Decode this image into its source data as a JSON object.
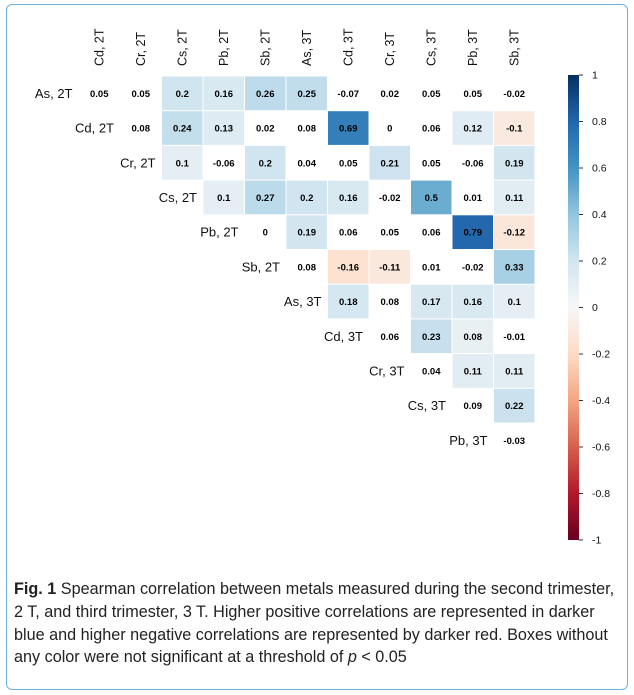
{
  "chart_data": {
    "type": "heatmap",
    "title": "",
    "column_labels": [
      "Cd, 2T",
      "Cr, 2T",
      "Cs, 2T",
      "Pb, 2T",
      "Sb, 2T",
      "As, 3T",
      "Cd, 3T",
      "Cr, 3T",
      "Cs, 3T",
      "Pb, 3T",
      "Sb, 3T"
    ],
    "row_labels": [
      "As, 2T",
      "Cd, 2T",
      "Cr, 2T",
      "Cs, 2T",
      "Pb, 2T",
      "Sb, 2T",
      "As, 3T",
      "Cd, 3T",
      "Cr, 3T",
      "Cs, 3T",
      "Pb, 3T"
    ],
    "values": [
      [
        0.05,
        0.05,
        0.2,
        0.16,
        0.26,
        0.25,
        -0.07,
        0.02,
        0.05,
        0.05,
        -0.02
      ],
      [
        null,
        0.08,
        0.24,
        0.13,
        0.02,
        0.08,
        0.69,
        0,
        0.06,
        0.12,
        -0.1
      ],
      [
        null,
        null,
        0.1,
        -0.06,
        0.2,
        0.04,
        0.05,
        0.21,
        0.05,
        -0.06,
        0.19
      ],
      [
        null,
        null,
        null,
        0.1,
        0.27,
        0.2,
        0.16,
        -0.02,
        0.5,
        0.01,
        0.11
      ],
      [
        null,
        null,
        null,
        null,
        0,
        0.19,
        0.06,
        0.05,
        0.06,
        0.79,
        -0.12
      ],
      [
        null,
        null,
        null,
        null,
        null,
        0.08,
        -0.16,
        -0.11,
        0.01,
        -0.02,
        0.33
      ],
      [
        null,
        null,
        null,
        null,
        null,
        null,
        0.18,
        0.08,
        0.17,
        0.16,
        0.1
      ],
      [
        null,
        null,
        null,
        null,
        null,
        null,
        null,
        0.06,
        0.23,
        0.08,
        -0.01
      ],
      [
        null,
        null,
        null,
        null,
        null,
        null,
        null,
        null,
        0.04,
        0.11,
        0.11
      ],
      [
        null,
        null,
        null,
        null,
        null,
        null,
        null,
        null,
        null,
        0.09,
        0.22
      ],
      [
        null,
        null,
        null,
        null,
        null,
        null,
        null,
        null,
        null,
        null,
        -0.03
      ]
    ],
    "colored": [
      [
        false,
        false,
        true,
        true,
        true,
        true,
        false,
        false,
        false,
        false,
        false
      ],
      [
        null,
        false,
        true,
        true,
        false,
        false,
        true,
        false,
        false,
        true,
        true
      ],
      [
        null,
        null,
        true,
        false,
        true,
        false,
        false,
        true,
        false,
        false,
        true
      ],
      [
        null,
        null,
        null,
        true,
        true,
        true,
        true,
        false,
        true,
        false,
        true
      ],
      [
        null,
        null,
        null,
        null,
        false,
        true,
        false,
        false,
        false,
        true,
        true
      ],
      [
        null,
        null,
        null,
        null,
        null,
        false,
        true,
        true,
        false,
        false,
        true
      ],
      [
        null,
        null,
        null,
        null,
        null,
        null,
        true,
        false,
        true,
        true,
        true
      ],
      [
        null,
        null,
        null,
        null,
        null,
        null,
        null,
        false,
        true,
        true,
        false
      ],
      [
        null,
        null,
        null,
        null,
        null,
        null,
        null,
        null,
        false,
        true,
        true
      ],
      [
        null,
        null,
        null,
        null,
        null,
        null,
        null,
        null,
        null,
        false,
        true
      ],
      [
        null,
        null,
        null,
        null,
        null,
        null,
        null,
        null,
        null,
        null,
        false
      ]
    ],
    "colorbar": {
      "range": [
        -1,
        1
      ],
      "ticks": [
        "1",
        "0.8",
        "0.6",
        "0.4",
        "0.2",
        "0",
        "-0.2",
        "-0.4",
        "-0.6",
        "-0.8",
        "-1"
      ],
      "colors": {
        "negative": "#67001f",
        "zero": "#f7f7f7",
        "positive": "#053061"
      }
    }
  },
  "caption": {
    "label": "Fig. 1",
    "text_before_p": " Spearman correlation between metals measured during the second trimester, 2 T, and third trimester, 3 T. Higher positive correlations are represented in darker blue and higher negative correlations are represented by darker red. Boxes without any color were not significant at a threshold of ",
    "p_symbol": "p",
    "text_after_p": " < 0.05"
  }
}
